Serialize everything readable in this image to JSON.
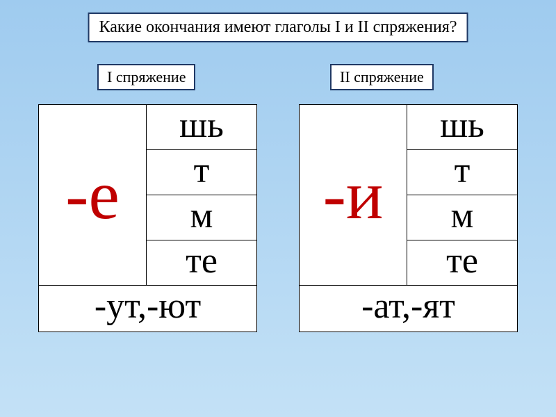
{
  "title": "Какие окончания имеют глаголы I и II спряжения?",
  "labels": {
    "conj1": "I спряжение",
    "conj2": "II спряжение"
  },
  "tables": {
    "t1": {
      "stem": "-е",
      "rows": [
        "шь",
        "т",
        "м",
        "те"
      ],
      "bottom": "-ут,-ют"
    },
    "t2": {
      "stem": "-и",
      "rows": [
        "шь",
        "т",
        "м",
        "те"
      ],
      "bottom": "-ат,-ят"
    }
  },
  "colors": {
    "bg_top": "#9fcbef",
    "bg_bottom": "#c3e1f6",
    "box_bg": "#ffffff",
    "box_border": "#1f3864",
    "stem_color": "#c00000",
    "text_color": "#000000",
    "grid_border": "#000000"
  },
  "fonts": {
    "title_size": 24,
    "label_size": 22,
    "stem_size": 100,
    "cell_size": 52
  }
}
